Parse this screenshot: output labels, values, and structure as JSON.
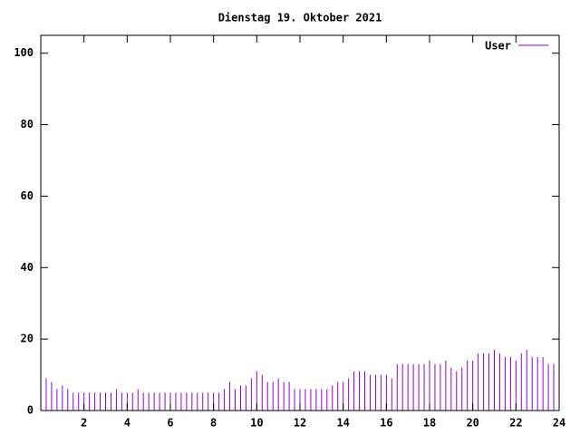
{
  "chart_data": {
    "type": "impulse",
    "title": "Dienstag 19. Oktober 2021",
    "x": [
      0,
      0.25,
      0.5,
      0.75,
      1,
      1.25,
      1.5,
      1.75,
      2,
      2.25,
      2.5,
      2.75,
      3,
      3.25,
      3.5,
      3.75,
      4,
      4.25,
      4.5,
      4.75,
      5,
      5.25,
      5.5,
      5.75,
      6,
      6.25,
      6.5,
      6.75,
      7,
      7.25,
      7.5,
      7.75,
      8,
      8.25,
      8.5,
      8.75,
      9,
      9.25,
      9.5,
      9.75,
      10,
      10.25,
      10.5,
      10.75,
      11,
      11.25,
      11.5,
      11.75,
      12,
      12.25,
      12.5,
      12.75,
      13,
      13.25,
      13.5,
      13.75,
      14,
      14.25,
      14.5,
      14.75,
      15,
      15.25,
      15.5,
      15.75,
      16,
      16.25,
      16.5,
      16.75,
      17,
      17.25,
      17.5,
      17.75,
      18,
      18.25,
      18.5,
      18.75,
      19,
      19.25,
      19.5,
      19.75,
      20,
      20.25,
      20.5,
      20.75,
      21,
      21.25,
      21.5,
      21.75,
      22,
      22.25,
      22.5,
      22.75,
      23,
      23.25,
      23.5,
      23.75
    ],
    "series": [
      {
        "name": "User",
        "color": "#9400d3",
        "values": [
          9,
          9,
          8,
          6,
          7,
          6,
          5,
          5,
          5,
          5,
          5,
          5,
          5,
          5,
          6,
          5,
          5,
          5,
          6,
          5,
          5,
          5,
          5,
          5,
          5,
          5,
          5,
          5,
          5,
          5,
          5,
          5,
          5,
          5,
          6,
          8,
          6,
          7,
          7,
          9,
          11,
          10,
          8,
          8,
          9,
          8,
          8,
          6,
          6,
          6,
          6,
          6,
          6,
          6,
          7,
          8,
          8,
          9,
          11,
          11,
          11,
          10,
          10,
          10,
          10,
          9,
          13,
          13,
          13,
          13,
          13,
          13,
          14,
          13,
          13,
          14,
          12,
          11,
          12,
          14,
          14,
          16,
          16,
          16,
          17,
          16,
          15,
          15,
          14,
          16,
          17,
          15,
          15,
          15,
          13,
          13
        ]
      }
    ],
    "xlim": [
      0,
      24
    ],
    "xticks": [
      2,
      4,
      6,
      8,
      10,
      12,
      14,
      16,
      18,
      20,
      22,
      24
    ],
    "ylim": [
      0,
      105
    ],
    "yticks": [
      0,
      20,
      40,
      60,
      80,
      100
    ],
    "legend": "upper right"
  }
}
